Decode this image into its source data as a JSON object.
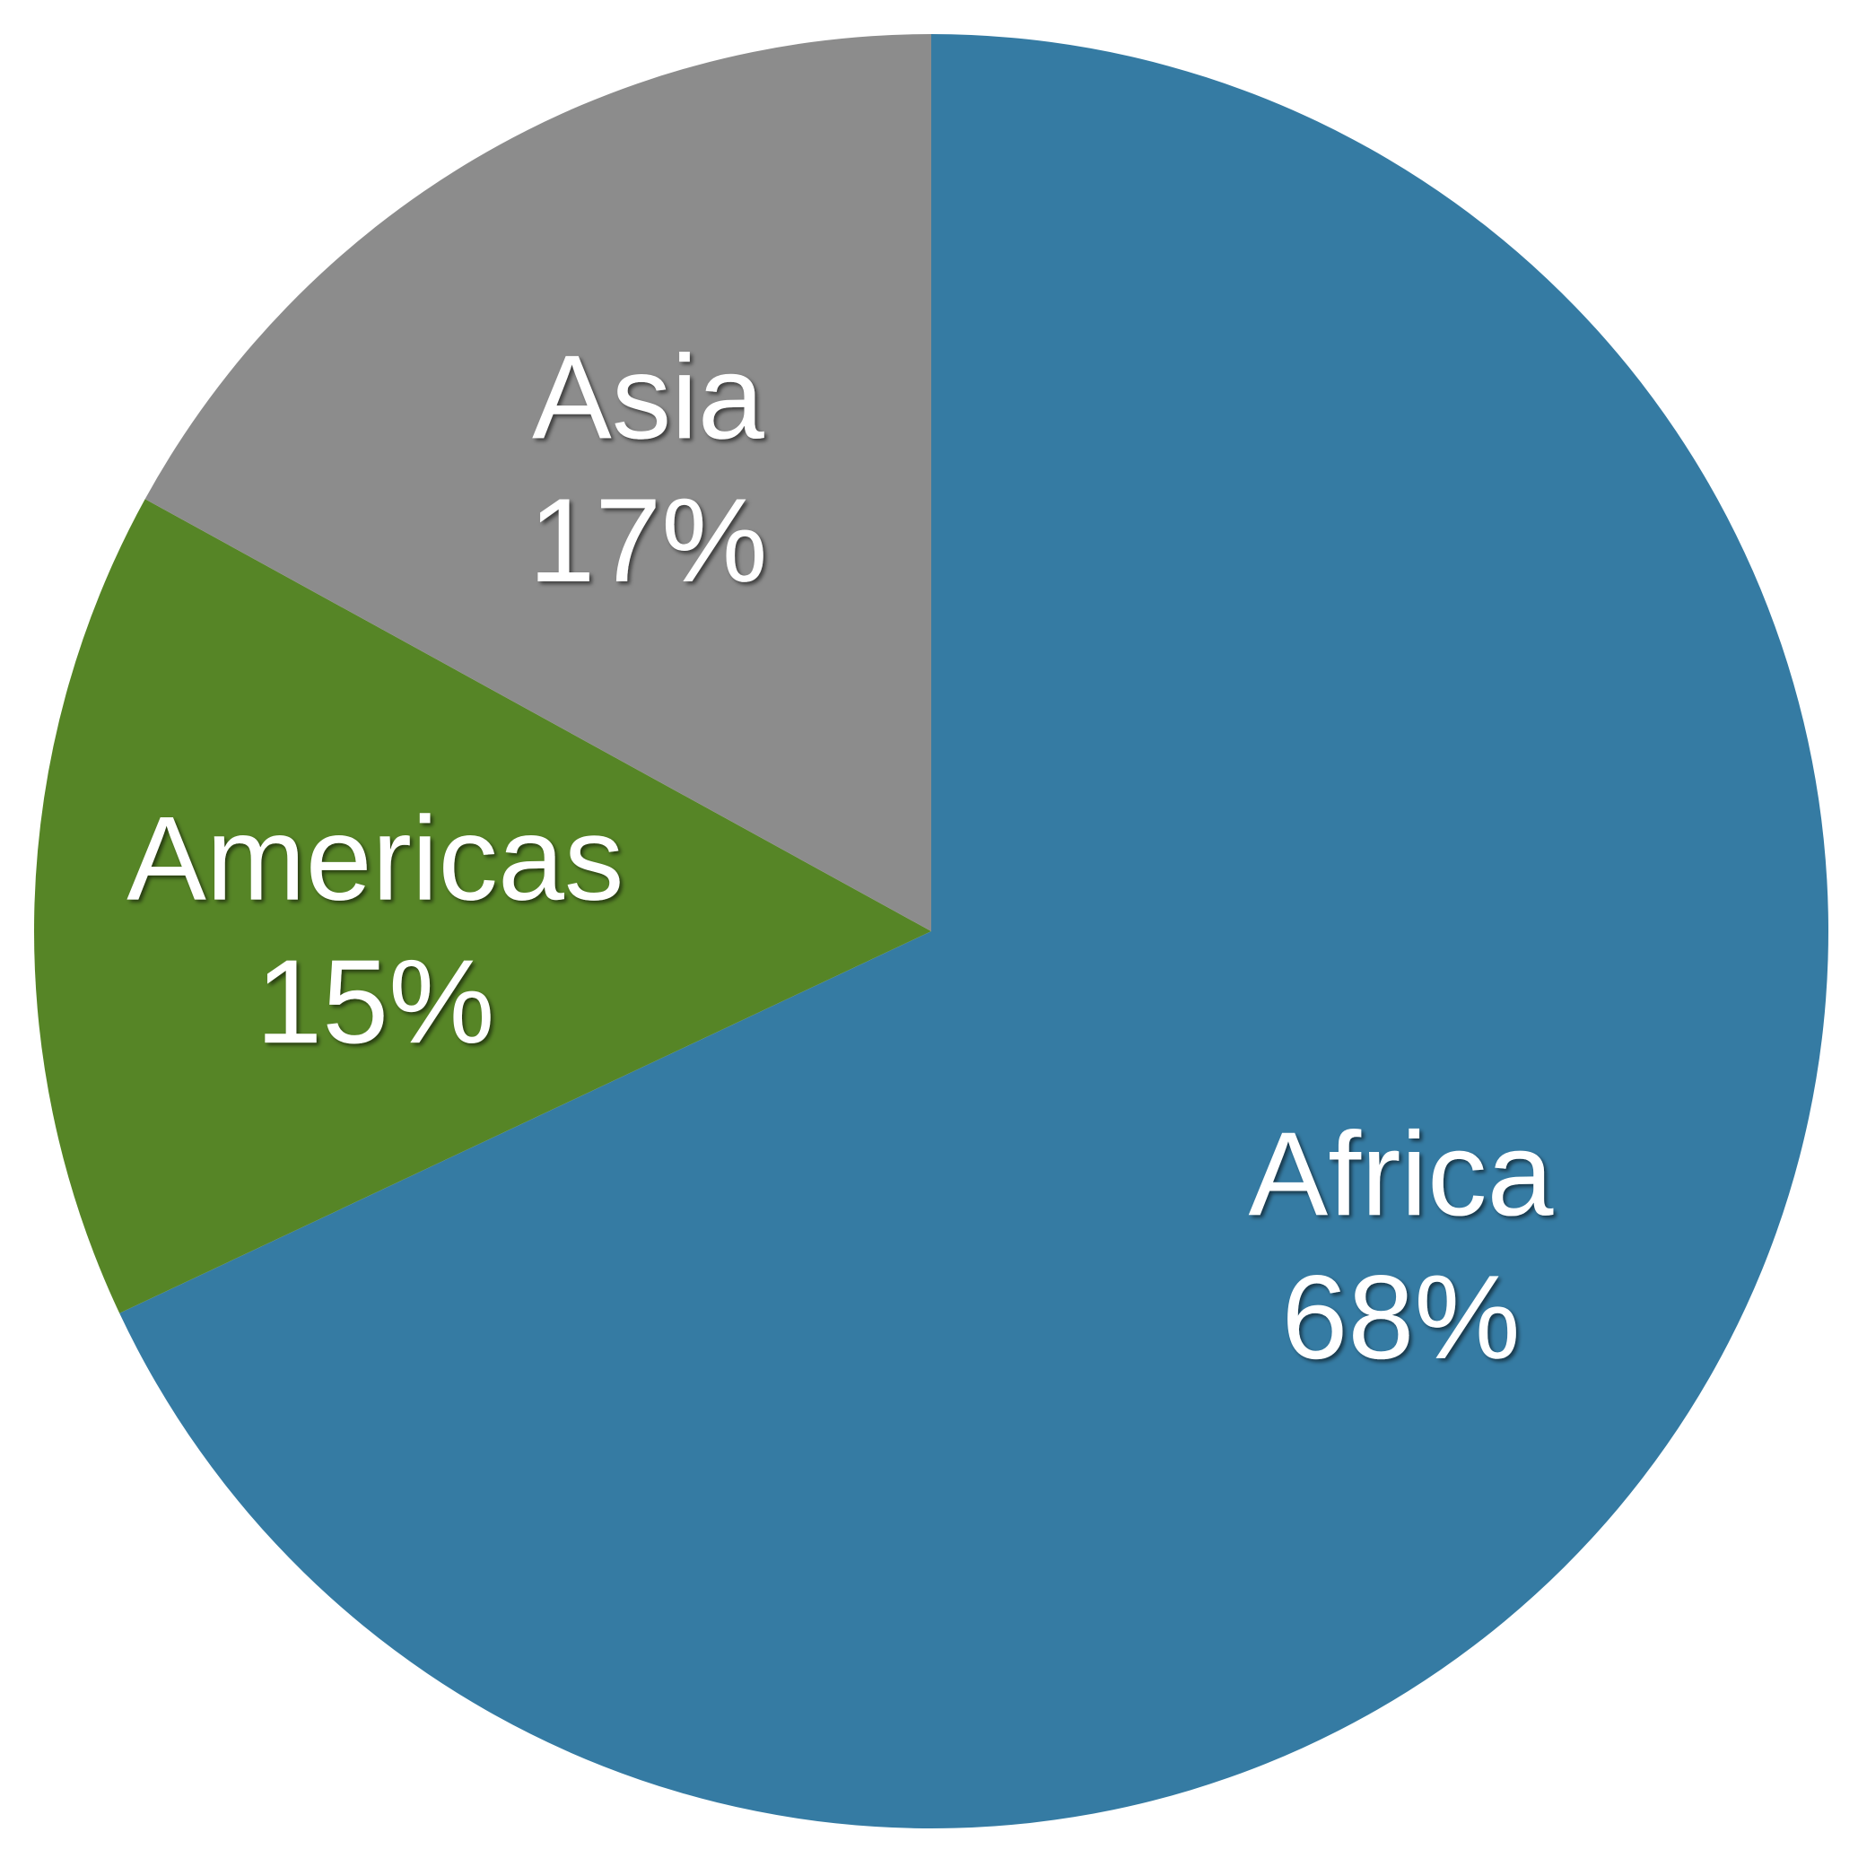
{
  "chart_data": {
    "type": "pie",
    "title": "",
    "slices": [
      {
        "label": "Africa",
        "value": 68,
        "display": "68%",
        "color": "#357ba3"
      },
      {
        "label": "Americas",
        "value": 15,
        "display": "15%",
        "color": "#568526"
      },
      {
        "label": "Asia",
        "value": 17,
        "display": "17%",
        "color": "#8c8c8c"
      }
    ],
    "start_angle": "12 o'clock",
    "direction": "clockwise",
    "labels_inside": true,
    "legend": "none"
  }
}
